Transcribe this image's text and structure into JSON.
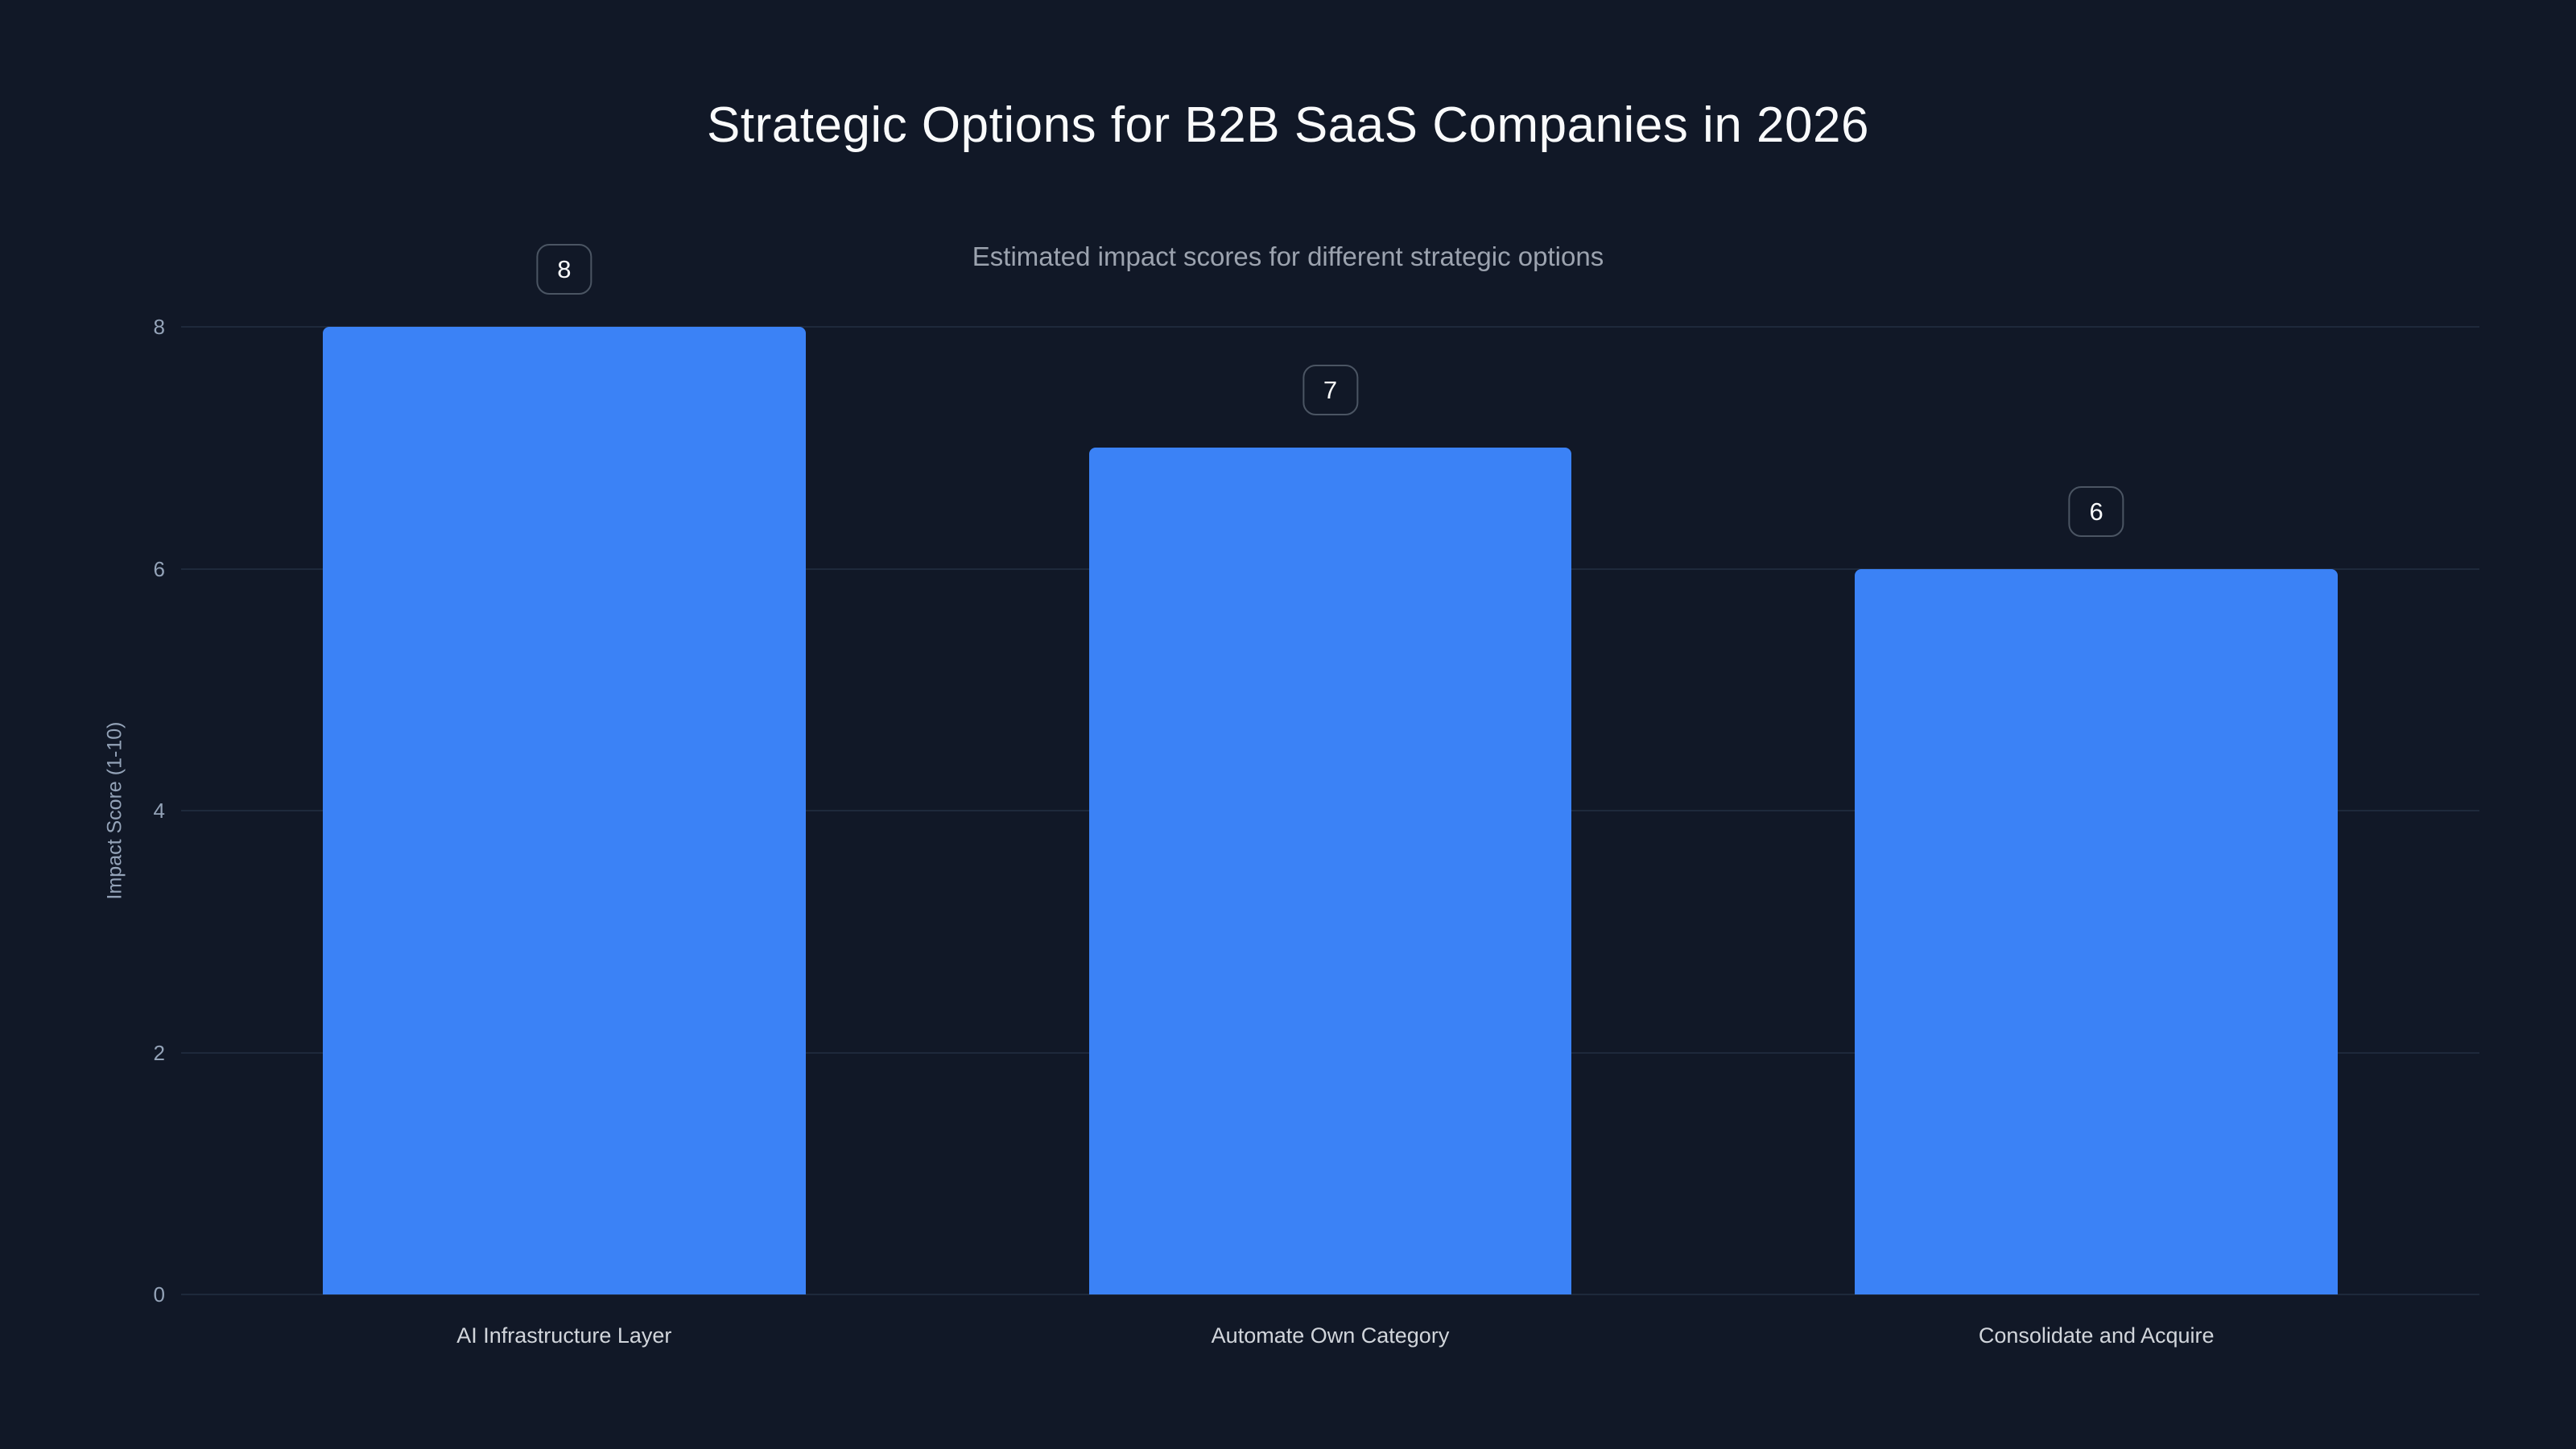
{
  "chart_data": {
    "type": "bar",
    "title": "Strategic Options for B2B SaaS Companies in 2026",
    "subtitle": "Estimated impact scores for different strategic options",
    "categories": [
      "AI Infrastructure Layer",
      "Automate Own Category",
      "Consolidate and Acquire"
    ],
    "values": [
      8,
      7,
      6
    ],
    "data_labels": [
      "8",
      "7",
      "6"
    ],
    "xlabel": "",
    "ylabel": "Impact Score (1-10)",
    "ylim": [
      0,
      8
    ],
    "yticks": [
      0,
      2,
      4,
      6,
      8
    ],
    "grid": true,
    "legend": false,
    "colors": {
      "background": "#111827",
      "bar": "#3b82f6",
      "gridline": "#1e293b",
      "tick_label": "#94a3b8",
      "category_label": "#d1d5db",
      "title": "#f9fafb",
      "subtitle": "#9ca3af",
      "badge_background": "#111827",
      "badge_border": "#4b5563",
      "badge_text": "#f9fafb"
    }
  }
}
